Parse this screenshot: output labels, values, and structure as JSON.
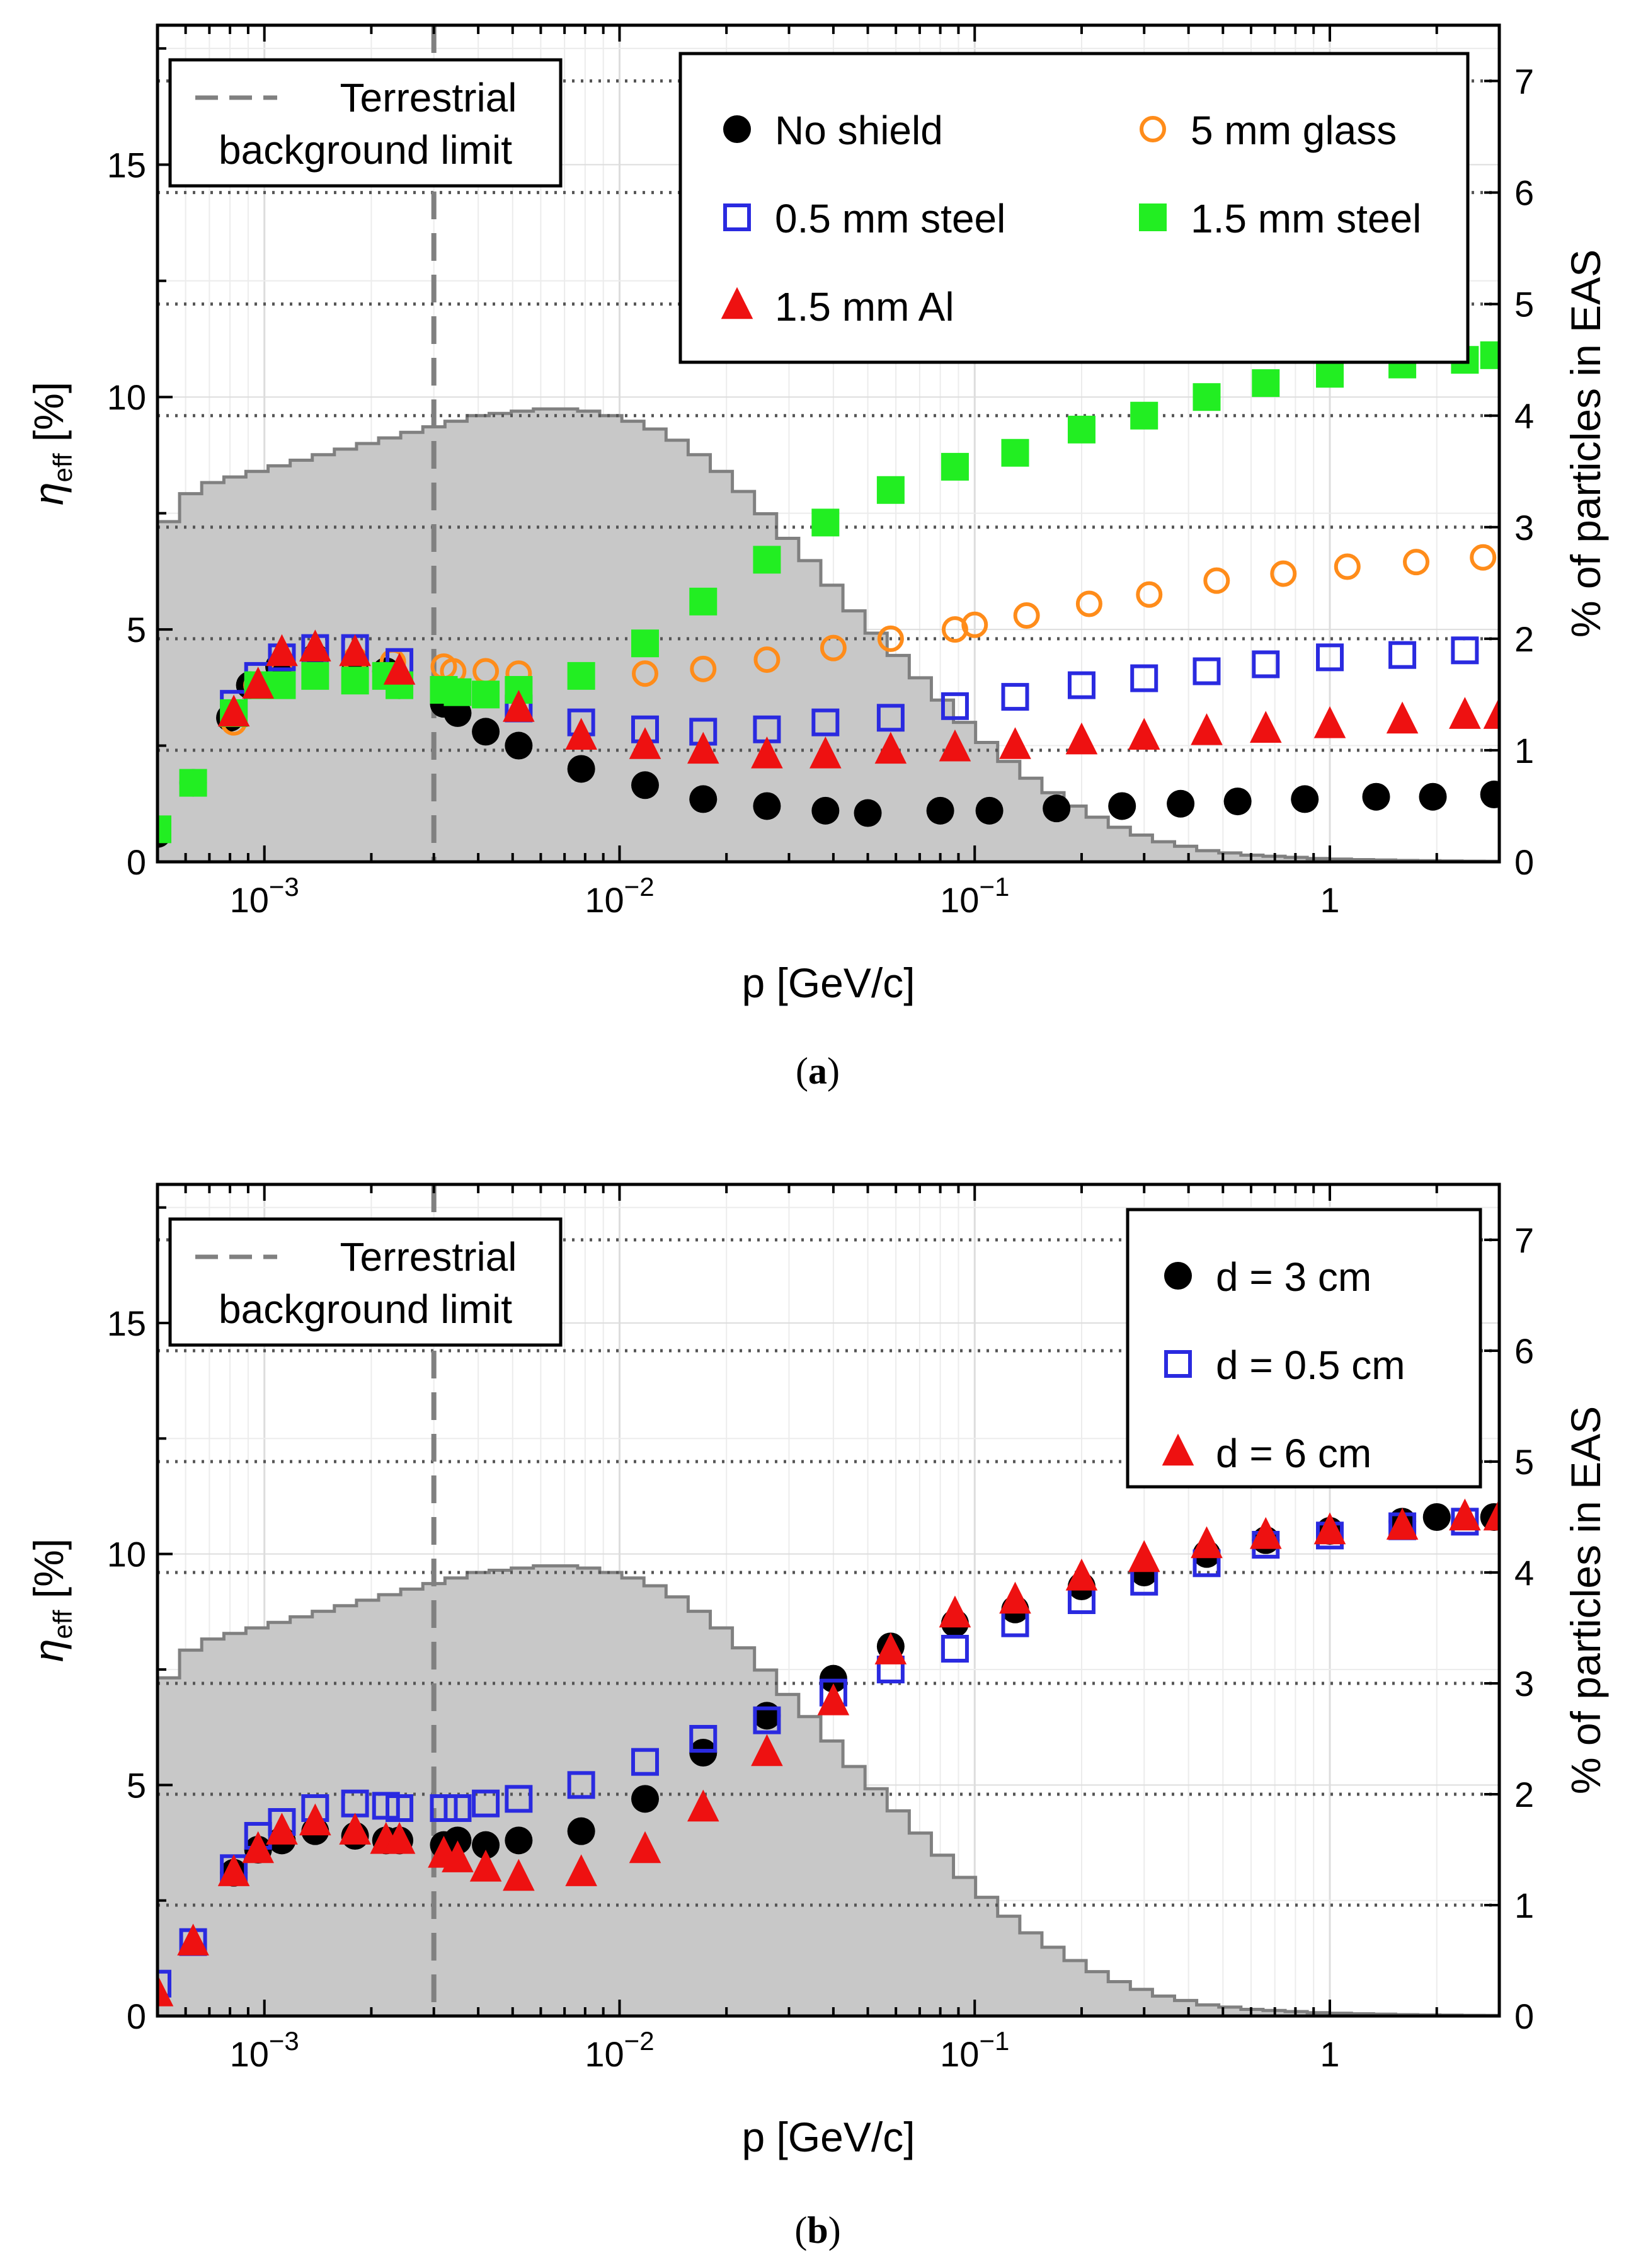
{
  "charts": [
    {
      "caption": "(a)",
      "ylabel_main": "η",
      "ylabel_sub": "eff",
      "ylabel_unit": " [%]",
      "xlabel": "p [GeV/c]",
      "y2label": "% of particles in EAS",
      "boundary_label": [
        "Terrestrial",
        "background limit"
      ],
      "legend": [
        {
          "label": "No shield",
          "series": 0
        },
        {
          "label": "5 mm glass",
          "series": 1
        },
        {
          "label": "0.5 mm steel",
          "series": 2
        },
        {
          "label": "1.5 mm steel",
          "series": 3
        },
        {
          "label": "1.5 mm Al",
          "series": 4
        }
      ]
    },
    {
      "caption": "(b)",
      "ylabel_main": "η",
      "ylabel_sub": "eff",
      "ylabel_unit": " [%]",
      "xlabel": "p [GeV/c]",
      "y2label": "% of particles in EAS",
      "boundary_label": [
        "Terrestrial",
        "background limit"
      ],
      "legend": [
        {
          "label": "d = 3 cm",
          "series": 0
        },
        {
          "label": "d = 0.5 cm",
          "series": 1
        },
        {
          "label": "d = 6 cm",
          "series": 2
        }
      ]
    }
  ],
  "chart_data": [
    {
      "type": "scatter",
      "xscale": "log",
      "xlim": [
        0.0005,
        3.0
      ],
      "ylim": [
        0,
        18
      ],
      "y2lim": [
        0,
        7.5
      ],
      "xticks": [
        0.001,
        0.01,
        0.1,
        1
      ],
      "xtick_labels": [
        "10−3",
        "10−2",
        "10−1",
        "1"
      ],
      "yticks": [
        0,
        5,
        10,
        15
      ],
      "y2ticks": [
        0,
        1,
        2,
        3,
        4,
        5,
        6,
        7
      ],
      "grid": true,
      "vline": {
        "x": 0.003,
        "style": "dashed",
        "color": "#808080"
      },
      "legend_position": "top-right",
      "boundary_legend_position": "top-left",
      "histogram": {
        "name": "% of particles in EAS",
        "bin_edges": [
          0.0005,
          0.000577,
          0.000666,
          0.000769,
          0.000887,
          0.001024,
          0.001182,
          0.001364,
          0.001574,
          0.001817,
          0.002097,
          0.00242,
          0.002793,
          0.003224,
          0.003721,
          0.004294,
          0.004956,
          0.00572,
          0.006602,
          0.00762,
          0.008794,
          0.01015,
          0.011714,
          0.013519,
          0.015603,
          0.018008,
          0.020783,
          0.023986,
          0.027683,
          0.03195,
          0.036874,
          0.042557,
          0.049117,
          0.056687,
          0.065424,
          0.075507,
          0.087145,
          0.100576,
          0.116077,
          0.133968,
          0.154616,
          0.178446,
          0.205949,
          0.237691,
          0.274325,
          0.316606,
          0.365403,
          0.421721,
          0.486719,
          0.561736,
          0.648314,
          0.748237,
          0.863561,
          0.996659,
          1.150257,
          1.327547,
          1.532158,
          1.76831,
          2.040858,
          2.355411,
          2.718446,
          3.0
        ],
        "values": [
          3.05,
          3.3,
          3.4,
          3.45,
          3.5,
          3.55,
          3.6,
          3.65,
          3.7,
          3.75,
          3.8,
          3.85,
          3.9,
          3.95,
          4.0,
          4.02,
          4.04,
          4.06,
          4.06,
          4.04,
          4.0,
          3.95,
          3.88,
          3.78,
          3.65,
          3.5,
          3.32,
          3.12,
          2.9,
          2.7,
          2.48,
          2.25,
          2.05,
          1.85,
          1.65,
          1.45,
          1.25,
          1.07,
          0.9,
          0.75,
          0.62,
          0.5,
          0.4,
          0.31,
          0.24,
          0.18,
          0.14,
          0.1,
          0.08,
          0.06,
          0.05,
          0.04,
          0.03,
          0.025,
          0.02,
          0.016,
          0.012,
          0.01,
          0.008,
          0.006,
          0.005
        ],
        "color": "#c8c8c8",
        "edge_color": "#808080"
      },
      "series": [
        {
          "name": "No shield",
          "marker": "circle-filled",
          "color": "#000000",
          "x": [
            0.0005,
            0.00063,
            0.0008,
            0.00091,
            0.0011,
            0.00139,
            0.0018,
            0.0022,
            0.0024,
            0.0032,
            0.0035,
            0.0042,
            0.0052,
            0.0078,
            0.0118,
            0.0172,
            0.026,
            0.038,
            0.05,
            0.08,
            0.11,
            0.17,
            0.26,
            0.38,
            0.55,
            0.85,
            1.35,
            1.95,
            2.9
          ],
          "y": [
            0.6,
            1.7,
            3.1,
            3.8,
            4.2,
            4.4,
            4.3,
            4.1,
            3.8,
            3.4,
            3.2,
            2.8,
            2.5,
            2.0,
            1.65,
            1.35,
            1.2,
            1.1,
            1.05,
            1.1,
            1.1,
            1.15,
            1.2,
            1.25,
            1.3,
            1.35,
            1.4,
            1.4,
            1.45
          ]
        },
        {
          "name": "5 mm glass",
          "marker": "circle-open",
          "color": "#ff8c1a",
          "x": [
            0.00082,
            0.00095,
            0.00112,
            0.00139,
            0.0018,
            0.0023,
            0.0032,
            0.0034,
            0.0042,
            0.0052,
            0.0118,
            0.0172,
            0.026,
            0.04,
            0.058,
            0.088,
            0.1,
            0.14,
            0.21,
            0.31,
            0.48,
            0.74,
            1.12,
            1.75,
            2.7
          ],
          "y": [
            3.0,
            3.8,
            4.1,
            4.4,
            4.35,
            4.3,
            4.2,
            4.1,
            4.1,
            4.05,
            4.05,
            4.15,
            4.35,
            4.6,
            4.8,
            5.0,
            5.1,
            5.3,
            5.55,
            5.75,
            6.05,
            6.2,
            6.35,
            6.45,
            6.55
          ]
        },
        {
          "name": "0.5 mm steel",
          "marker": "square-open",
          "color": "#2a2ae0",
          "x": [
            0.00082,
            0.00096,
            0.00112,
            0.00139,
            0.0018,
            0.0024,
            0.0052,
            0.0078,
            0.0118,
            0.0172,
            0.026,
            0.038,
            0.058,
            0.088,
            0.13,
            0.2,
            0.3,
            0.45,
            0.66,
            1.0,
            1.6,
            2.4
          ],
          "y": [
            3.4,
            4.0,
            4.4,
            4.6,
            4.6,
            4.3,
            3.3,
            3.0,
            2.85,
            2.8,
            2.85,
            3.0,
            3.1,
            3.35,
            3.55,
            3.8,
            3.95,
            4.1,
            4.25,
            4.4,
            4.45,
            4.55
          ]
        },
        {
          "name": "1.5 mm steel",
          "marker": "square-filled",
          "color": "#22ee22",
          "x": [
            0.0005,
            0.00063,
            0.00082,
            0.00096,
            0.00112,
            0.00139,
            0.0018,
            0.0022,
            0.0024,
            0.0032,
            0.0035,
            0.0042,
            0.0052,
            0.0078,
            0.0118,
            0.0172,
            0.026,
            0.038,
            0.058,
            0.088,
            0.13,
            0.2,
            0.3,
            0.45,
            0.66,
            1.0,
            1.6,
            2.4,
            2.9
          ],
          "y": [
            0.7,
            1.7,
            3.2,
            3.8,
            3.8,
            4.0,
            3.9,
            4.0,
            3.8,
            3.7,
            3.65,
            3.6,
            3.7,
            4.0,
            4.7,
            5.6,
            6.5,
            7.3,
            8.0,
            8.5,
            8.8,
            9.3,
            9.6,
            10.0,
            10.3,
            10.5,
            10.7,
            10.8,
            10.9
          ]
        },
        {
          "name": "1.5 mm Al",
          "marker": "triangle-filled",
          "color": "#ee1111",
          "x": [
            0.00082,
            0.00096,
            0.00112,
            0.00139,
            0.0018,
            0.0024,
            0.0052,
            0.0078,
            0.0118,
            0.0172,
            0.026,
            0.038,
            0.058,
            0.088,
            0.13,
            0.2,
            0.3,
            0.45,
            0.66,
            1.0,
            1.6,
            2.4,
            3.0
          ],
          "y": [
            3.2,
            3.8,
            4.5,
            4.6,
            4.5,
            4.1,
            3.3,
            2.7,
            2.5,
            2.4,
            2.3,
            2.3,
            2.4,
            2.45,
            2.5,
            2.6,
            2.7,
            2.8,
            2.85,
            2.95,
            3.05,
            3.15,
            3.15
          ]
        }
      ]
    },
    {
      "type": "scatter",
      "xscale": "log",
      "xlim": [
        0.0005,
        3.0
      ],
      "ylim": [
        0,
        18
      ],
      "y2lim": [
        0,
        7.5
      ],
      "xticks": [
        0.001,
        0.01,
        0.1,
        1
      ],
      "xtick_labels": [
        "10−3",
        "10−2",
        "10−1",
        "1"
      ],
      "yticks": [
        0,
        5,
        10,
        15
      ],
      "y2ticks": [
        0,
        1,
        2,
        3,
        4,
        5,
        6,
        7
      ],
      "grid": true,
      "vline": {
        "x": 0.003,
        "style": "dashed",
        "color": "#808080"
      },
      "legend_position": "top-right",
      "boundary_legend_position": "top-left",
      "histogram": {
        "name": "% of particles in EAS",
        "bin_edges": [
          0.0005,
          0.000577,
          0.000666,
          0.000769,
          0.000887,
          0.001024,
          0.001182,
          0.001364,
          0.001574,
          0.001817,
          0.002097,
          0.00242,
          0.002793,
          0.003224,
          0.003721,
          0.004294,
          0.004956,
          0.00572,
          0.006602,
          0.00762,
          0.008794,
          0.01015,
          0.011714,
          0.013519,
          0.015603,
          0.018008,
          0.020783,
          0.023986,
          0.027683,
          0.03195,
          0.036874,
          0.042557,
          0.049117,
          0.056687,
          0.065424,
          0.075507,
          0.087145,
          0.100576,
          0.116077,
          0.133968,
          0.154616,
          0.178446,
          0.205949,
          0.237691,
          0.274325,
          0.316606,
          0.365403,
          0.421721,
          0.486719,
          0.561736,
          0.648314,
          0.748237,
          0.863561,
          0.996659,
          1.150257,
          1.327547,
          1.532158,
          1.76831,
          2.040858,
          2.355411,
          2.718446,
          3.0
        ],
        "values": [
          3.05,
          3.3,
          3.4,
          3.45,
          3.5,
          3.55,
          3.6,
          3.65,
          3.7,
          3.75,
          3.8,
          3.85,
          3.9,
          3.95,
          4.0,
          4.02,
          4.04,
          4.06,
          4.06,
          4.04,
          4.0,
          3.95,
          3.88,
          3.78,
          3.65,
          3.5,
          3.32,
          3.12,
          2.9,
          2.7,
          2.48,
          2.25,
          2.05,
          1.85,
          1.65,
          1.45,
          1.25,
          1.07,
          0.9,
          0.75,
          0.62,
          0.5,
          0.4,
          0.31,
          0.24,
          0.18,
          0.14,
          0.1,
          0.08,
          0.06,
          0.05,
          0.04,
          0.03,
          0.025,
          0.02,
          0.016,
          0.012,
          0.01,
          0.008,
          0.006,
          0.005
        ],
        "color": "#c8c8c8",
        "edge_color": "#808080"
      },
      "series": [
        {
          "name": "d = 3 cm",
          "marker": "circle-filled",
          "color": "#000000",
          "x": [
            0.00082,
            0.00096,
            0.00112,
            0.00139,
            0.0018,
            0.0022,
            0.0024,
            0.0032,
            0.0035,
            0.0042,
            0.0052,
            0.0078,
            0.0118,
            0.0172,
            0.026,
            0.04,
            0.058,
            0.088,
            0.13,
            0.2,
            0.3,
            0.45,
            0.66,
            1.0,
            1.6,
            2.0,
            2.9
          ],
          "y": [
            3.1,
            3.6,
            3.8,
            4.0,
            3.9,
            3.8,
            3.8,
            3.7,
            3.8,
            3.7,
            3.8,
            4.0,
            4.7,
            5.7,
            6.5,
            7.3,
            8.0,
            8.5,
            8.8,
            9.3,
            9.6,
            10.0,
            10.3,
            10.5,
            10.7,
            10.8,
            10.8
          ]
        },
        {
          "name": "d = 0.5 cm",
          "marker": "square-open",
          "color": "#2a2ae0",
          "x": [
            0.0005,
            0.00063,
            0.00082,
            0.00096,
            0.00112,
            0.00139,
            0.0018,
            0.0022,
            0.0024,
            0.0032,
            0.0035,
            0.0042,
            0.0052,
            0.0078,
            0.0118,
            0.0172,
            0.026,
            0.04,
            0.058,
            0.088,
            0.13,
            0.2,
            0.3,
            0.45,
            0.66,
            1.0,
            1.6,
            2.4
          ],
          "y": [
            0.7,
            1.6,
            3.2,
            3.9,
            4.2,
            4.5,
            4.6,
            4.55,
            4.5,
            4.5,
            4.5,
            4.6,
            4.7,
            5.0,
            5.5,
            6.0,
            6.4,
            7.0,
            7.5,
            7.95,
            8.5,
            9.0,
            9.4,
            9.8,
            10.2,
            10.4,
            10.6,
            10.7
          ]
        },
        {
          "name": "d = 6 cm",
          "marker": "triangle-filled",
          "color": "#ee1111",
          "x": [
            0.0005,
            0.00063,
            0.00082,
            0.00096,
            0.00112,
            0.00139,
            0.0018,
            0.0022,
            0.0024,
            0.0032,
            0.0035,
            0.0042,
            0.0052,
            0.0078,
            0.0118,
            0.0172,
            0.026,
            0.04,
            0.058,
            0.088,
            0.13,
            0.2,
            0.3,
            0.45,
            0.66,
            1.0,
            1.6,
            2.4,
            3.0
          ],
          "y": [
            0.5,
            1.6,
            3.1,
            3.6,
            4.0,
            4.2,
            4.0,
            3.8,
            3.8,
            3.5,
            3.4,
            3.2,
            3.0,
            3.1,
            3.6,
            4.5,
            5.7,
            6.8,
            7.9,
            8.7,
            9.0,
            9.5,
            9.9,
            10.2,
            10.4,
            10.5,
            10.6,
            10.8,
            10.8
          ]
        }
      ]
    }
  ]
}
